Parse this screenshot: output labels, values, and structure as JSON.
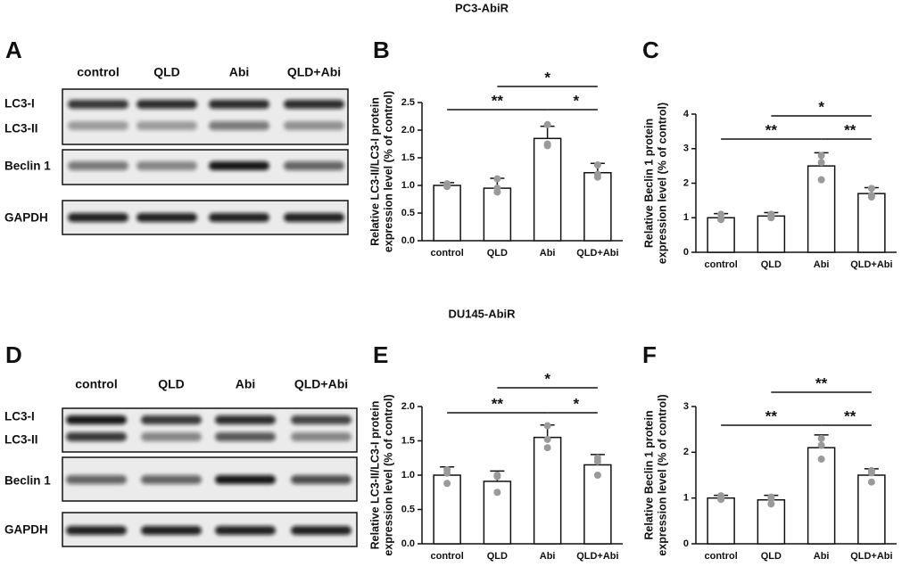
{
  "figure": {
    "titles": [
      "PC3-AbiR",
      "DU145-AbiR"
    ],
    "letters": [
      "A",
      "B",
      "C",
      "D",
      "E",
      "F"
    ],
    "blots": [
      {
        "lanes": [
          "control",
          "QLD",
          "Abi",
          "QLD+Abi"
        ],
        "rows": [
          "LC3-I",
          "LC3-II",
          "Beclin 1",
          "GAPDH"
        ]
      },
      {
        "lanes": [
          "control",
          "QLD",
          "Abi",
          "QLD+Abi"
        ],
        "rows": [
          "LC3-I",
          "LC3-II",
          "Beclin 1",
          "GAPDH"
        ]
      }
    ]
  },
  "chart_data": [
    {
      "type": "bar",
      "ylabel": [
        "Relative LC3-II/LC3-I protein",
        "expression level (% of control)"
      ],
      "categories": [
        "control",
        "QLD",
        "Abi",
        "QLD+Abi"
      ],
      "values": [
        1.0,
        0.95,
        1.85,
        1.23
      ],
      "errors": [
        0.05,
        0.18,
        0.22,
        0.17
      ],
      "points": [
        [
          0.98,
          1.03,
          1.0
        ],
        [
          1.12,
          0.88,
          0.95
        ],
        [
          2.1,
          1.75,
          1.72
        ],
        [
          1.37,
          1.15,
          1.2
        ]
      ],
      "brackets": [
        "**",
        "*",
        "*"
      ],
      "color": "#ffffff",
      "ylim": [
        0,
        2.5
      ],
      "yticks": [
        0.0,
        0.5,
        1.0,
        1.5,
        2.0,
        2.5
      ]
    },
    {
      "type": "bar",
      "ylabel": [
        "Relative Beclin 1 protein",
        "expression level (% of control)"
      ],
      "categories": [
        "control",
        "QLD",
        "Abi",
        "QLD+Abi"
      ],
      "values": [
        1.0,
        1.05,
        2.5,
        1.7
      ],
      "errors": [
        0.12,
        0.1,
        0.38,
        0.17
      ],
      "points": [
        [
          1.1,
          0.95,
          0.95
        ],
        [
          1.1,
          1.0,
          1.05
        ],
        [
          2.8,
          2.1,
          2.6
        ],
        [
          1.85,
          1.6,
          1.65
        ]
      ],
      "brackets": [
        "**",
        "*",
        "**"
      ],
      "color": "#ffffff",
      "ylim": [
        0,
        4
      ],
      "yticks": [
        0,
        1,
        2,
        3,
        4
      ]
    },
    {
      "type": "bar",
      "ylabel": [
        "Relative LC3-II/LC3-I protein",
        "expression level (% of control)"
      ],
      "categories": [
        "control",
        "QLD",
        "Abi",
        "QLD+Abi"
      ],
      "values": [
        1.0,
        0.91,
        1.55,
        1.15
      ],
      "errors": [
        0.12,
        0.15,
        0.18,
        0.15
      ],
      "points": [
        [
          1.08,
          0.88,
          1.03
        ],
        [
          1.0,
          0.75,
          0.98
        ],
        [
          1.72,
          1.4,
          1.52
        ],
        [
          1.25,
          1.0,
          1.2
        ]
      ],
      "brackets": [
        "**",
        "*",
        "*"
      ],
      "color": "#ffffff",
      "ylim": [
        0,
        2.0
      ],
      "yticks": [
        0.0,
        0.5,
        1.0,
        1.5,
        2.0
      ]
    },
    {
      "type": "bar",
      "ylabel": [
        "Relative Beclin 1 protein",
        "expression level (% of control)"
      ],
      "categories": [
        "control",
        "QLD",
        "Abi",
        "QLD+Abi"
      ],
      "values": [
        1.0,
        0.96,
        2.1,
        1.5
      ],
      "errors": [
        0.06,
        0.1,
        0.28,
        0.14
      ],
      "points": [
        [
          1.05,
          0.97,
          1.0
        ],
        [
          1.02,
          0.87,
          0.98
        ],
        [
          2.3,
          1.85,
          2.15
        ],
        [
          1.6,
          1.35,
          1.55
        ]
      ],
      "brackets": [
        "**",
        "**",
        "**"
      ],
      "color": "#ffffff",
      "ylim": [
        0,
        3
      ],
      "yticks": [
        0,
        1,
        2,
        3
      ]
    }
  ]
}
